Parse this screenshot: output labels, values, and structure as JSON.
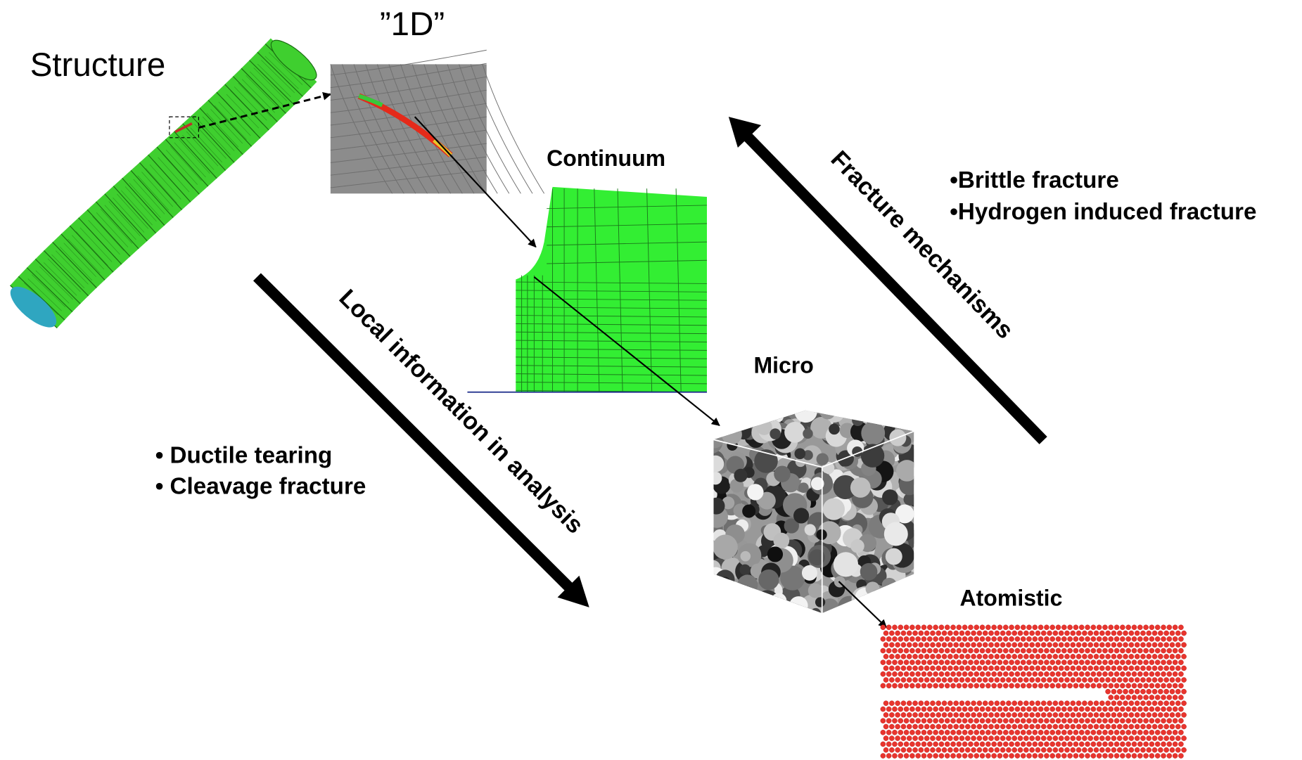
{
  "labels": {
    "structure": "Structure",
    "one_d": "”1D”",
    "continuum": "Continuum",
    "micro": "Micro",
    "atomistic": "Atomistic"
  },
  "arrows": {
    "down": "Local information in analysis",
    "up": "Fracture mechanisms"
  },
  "lists": {
    "left": [
      "• Ductile tearing",
      "• Cleavage fracture"
    ],
    "right": [
      "•Brittle fracture",
      "•Hydrogen induced fracture"
    ]
  }
}
